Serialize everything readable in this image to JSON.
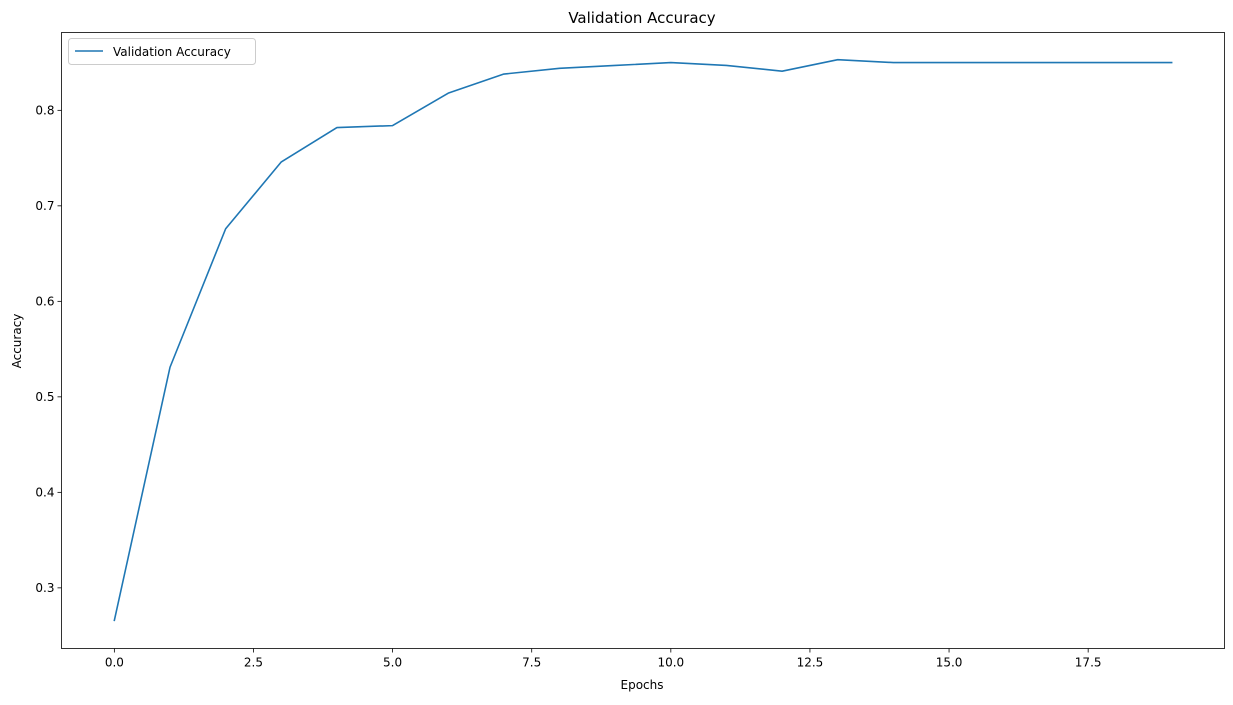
{
  "chart_data": {
    "type": "line",
    "title": "Validation Accuracy",
    "xlabel": "Epochs",
    "ylabel": "Accuracy",
    "xlim": [
      -0.95,
      19.95
    ],
    "ylim": [
      0.2365,
      0.8815
    ],
    "xticks": [
      0.0,
      2.5,
      5.0,
      7.5,
      10.0,
      12.5,
      15.0,
      17.5
    ],
    "xtick_labels": [
      "0.0",
      "2.5",
      "5.0",
      "7.5",
      "10.0",
      "12.5",
      "15.0",
      "17.5"
    ],
    "yticks": [
      0.3,
      0.4,
      0.5,
      0.6,
      0.7,
      0.8
    ],
    "ytick_labels": [
      "0.3",
      "0.4",
      "0.5",
      "0.6",
      "0.7",
      "0.8"
    ],
    "grid": false,
    "legend_position": "upper-left",
    "series": [
      {
        "name": "Validation Accuracy",
        "color": "#1f77b4",
        "x": [
          0,
          1,
          2,
          3,
          4,
          5,
          6,
          7,
          8,
          9,
          10,
          11,
          12,
          13,
          14,
          15,
          16,
          17,
          18,
          19
        ],
        "y": [
          0.266,
          0.531,
          0.676,
          0.746,
          0.782,
          0.784,
          0.818,
          0.838,
          0.844,
          0.847,
          0.85,
          0.847,
          0.841,
          0.853,
          0.85,
          0.85,
          0.85,
          0.85,
          0.85,
          0.85
        ]
      }
    ]
  }
}
